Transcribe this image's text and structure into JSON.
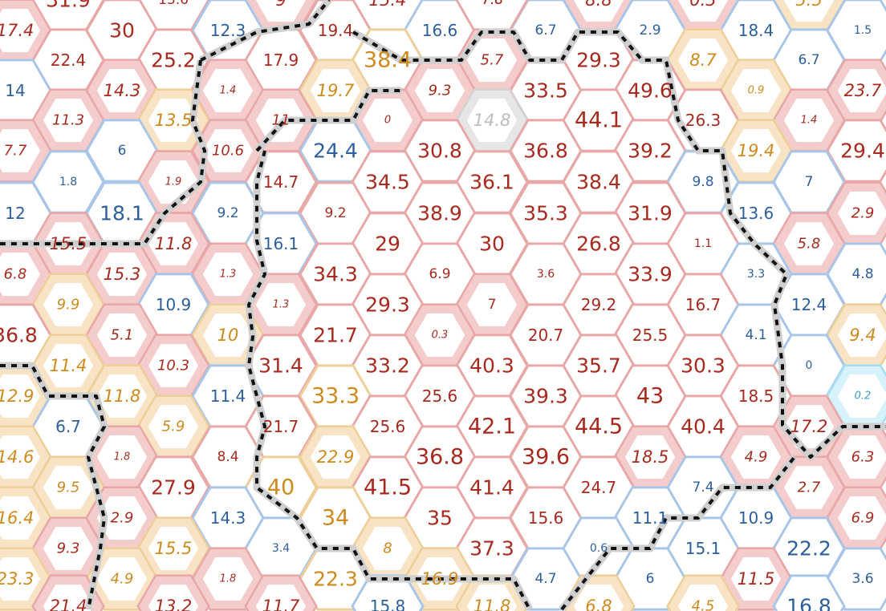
{
  "palette": {
    "red": {
      "edge": "#e8a8a8",
      "ring": "#f4cccc",
      "text": "#a82a1f"
    },
    "orange": {
      "edge": "#eecf9a",
      "ring": "#f8e4c4",
      "text": "#cf8a1e"
    },
    "blue": {
      "edge": "#a9c6e8",
      "ring": "#ffffff",
      "text": "#2c5f9c"
    },
    "gray": {
      "edge": "#d2d2d2",
      "ring": "#e6e6e6",
      "text": "#bdbdbd"
    },
    "cyan": {
      "edge": "#a7dff0",
      "ring": "#d7f2fa",
      "text": "#3b9ec4"
    }
  },
  "cells": [
    {
      "v": "31.9",
      "c": "red",
      "s": "L",
      "r": 0
    },
    {
      "v": "13.6",
      "c": "red",
      "s": "S",
      "r": 0
    },
    {
      "v": "9",
      "c": "red",
      "s": "I",
      "r": 1
    },
    {
      "v": "15.4",
      "c": "red",
      "s": "I",
      "r": 0
    },
    {
      "v": "7.8",
      "c": "red",
      "s": "S",
      "r": 0
    },
    {
      "v": "8.8",
      "c": "red",
      "s": "I",
      "r": 1
    },
    {
      "v": "0.3",
      "c": "red",
      "s": "I",
      "r": 1
    },
    {
      "v": "5.5",
      "c": "orange",
      "s": "I",
      "r": 1
    },
    {
      "v": "17.4",
      "c": "red",
      "s": "I",
      "r": 1
    },
    {
      "v": "12.3",
      "c": "blue",
      "s": "M",
      "r": 0
    },
    {
      "v": "16.6",
      "c": "blue",
      "s": "M",
      "r": 0
    },
    {
      "v": "6.7",
      "c": "blue",
      "s": "S",
      "r": 0
    },
    {
      "v": "2.9",
      "c": "blue",
      "s": "S",
      "r": 0
    },
    {
      "v": "18.4",
      "c": "blue",
      "s": "M",
      "r": 0
    },
    {
      "v": "1.5",
      "c": "blue",
      "s": "XS",
      "r": 0
    },
    {
      "v": "30",
      "c": "red",
      "s": "L",
      "r": 0
    },
    {
      "v": "19.4",
      "c": "red",
      "s": "M",
      "r": 0
    },
    {
      "v": "7.8",
      "c": "red",
      "s": "S",
      "r": 0
    },
    {
      "v": "22.4",
      "c": "red",
      "s": "M",
      "r": 0
    },
    {
      "v": "17.9",
      "c": "red",
      "s": "M",
      "r": 0
    },
    {
      "v": "38.4",
      "c": "orange",
      "s": "XL",
      "r": 0
    },
    {
      "v": "25.2",
      "c": "red",
      "s": "L",
      "r": 0
    },
    {
      "v": "5.7",
      "c": "red",
      "s": "IS",
      "r": 1
    },
    {
      "v": "29.3",
      "c": "red",
      "s": "L",
      "r": 0
    },
    {
      "v": "8.7",
      "c": "orange",
      "s": "I",
      "r": 1
    },
    {
      "v": "6.7",
      "c": "blue",
      "s": "S",
      "r": 0
    },
    {
      "v": "14.3",
      "c": "red",
      "s": "I",
      "r": 1
    },
    {
      "v": "1.4",
      "c": "red",
      "s": "IX",
      "r": 1
    },
    {
      "v": "19.7",
      "c": "orange",
      "s": "I",
      "r": 1
    },
    {
      "v": "9.3",
      "c": "red",
      "s": "IS",
      "r": 1
    },
    {
      "v": "33.5",
      "c": "red",
      "s": "L",
      "r": 0
    },
    {
      "v": "49.6",
      "c": "red",
      "s": "L",
      "r": 0
    },
    {
      "v": "0.9",
      "c": "orange",
      "s": "IX",
      "r": 1
    },
    {
      "v": "23.7",
      "c": "red",
      "s": "I",
      "r": 1
    },
    {
      "v": "14",
      "c": "blue",
      "s": "M",
      "r": 0
    },
    {
      "v": "11.3",
      "c": "red",
      "s": "IS",
      "r": 1
    },
    {
      "v": "13.5",
      "c": "orange",
      "s": "I",
      "r": 1
    },
    {
      "v": "11",
      "c": "red",
      "s": "IS",
      "r": 1
    },
    {
      "v": "0",
      "c": "red",
      "s": "IX",
      "r": 1
    },
    {
      "v": "14.8",
      "c": "gray",
      "s": "I",
      "r": 1
    },
    {
      "v": "44.1",
      "c": "red",
      "s": "XL",
      "r": 0
    },
    {
      "v": "26.3",
      "c": "red",
      "s": "M",
      "r": 0
    },
    {
      "v": "1.4",
      "c": "red",
      "s": "IX",
      "r": 1
    },
    {
      "v": "7.7",
      "c": "red",
      "s": "IS",
      "r": 1
    },
    {
      "v": "6",
      "c": "blue",
      "s": "S",
      "r": 0
    },
    {
      "v": "10.6",
      "c": "red",
      "s": "IS",
      "r": 1
    },
    {
      "v": "24.4",
      "c": "blue",
      "s": "L",
      "r": 0
    },
    {
      "v": "30.8",
      "c": "red",
      "s": "L",
      "r": 0
    },
    {
      "v": "36.8",
      "c": "red",
      "s": "L",
      "r": 0
    },
    {
      "v": "39.2",
      "c": "red",
      "s": "L",
      "r": 0
    },
    {
      "v": "19.4",
      "c": "orange",
      "s": "I",
      "r": 1
    },
    {
      "v": "29.4",
      "c": "red",
      "s": "L",
      "r": 0
    },
    {
      "v": "1.8",
      "c": "blue",
      "s": "XS",
      "r": 0
    },
    {
      "v": "1.9",
      "c": "red",
      "s": "IX",
      "r": 1
    },
    {
      "v": "14.7",
      "c": "red",
      "s": "M",
      "r": 0
    },
    {
      "v": "34.5",
      "c": "red",
      "s": "L",
      "r": 0
    },
    {
      "v": "36.1",
      "c": "red",
      "s": "L",
      "r": 0
    },
    {
      "v": "38.4",
      "c": "red",
      "s": "L",
      "r": 0
    },
    {
      "v": "9.8",
      "c": "blue",
      "s": "S",
      "r": 0
    },
    {
      "v": "7",
      "c": "blue",
      "s": "S",
      "r": 0
    },
    {
      "v": "12",
      "c": "blue",
      "s": "M",
      "r": 0
    },
    {
      "v": "18.1",
      "c": "blue",
      "s": "L",
      "r": 0
    },
    {
      "v": "9.2",
      "c": "blue",
      "s": "S",
      "r": 0
    },
    {
      "v": "9.2",
      "c": "red",
      "s": "S",
      "r": 0
    },
    {
      "v": "38.9",
      "c": "red",
      "s": "L",
      "r": 0
    },
    {
      "v": "35.3",
      "c": "red",
      "s": "L",
      "r": 0
    },
    {
      "v": "31.9",
      "c": "red",
      "s": "L",
      "r": 0
    },
    {
      "v": "13.6",
      "c": "blue",
      "s": "M",
      "r": 0
    },
    {
      "v": "2.9",
      "c": "red",
      "s": "IS",
      "r": 1
    },
    {
      "v": "15.5",
      "c": "red",
      "s": "I",
      "r": 1
    },
    {
      "v": "11.8",
      "c": "red",
      "s": "I",
      "r": 1
    },
    {
      "v": "16.1",
      "c": "blue",
      "s": "M",
      "r": 0
    },
    {
      "v": "29",
      "c": "red",
      "s": "L",
      "r": 0
    },
    {
      "v": "30",
      "c": "red",
      "s": "L",
      "r": 0
    },
    {
      "v": "26.8",
      "c": "red",
      "s": "L",
      "r": 0
    },
    {
      "v": "1.1",
      "c": "red",
      "s": "XS",
      "r": 0
    },
    {
      "v": "5.8",
      "c": "red",
      "s": "IS",
      "r": 1
    },
    {
      "v": "6.8",
      "c": "red",
      "s": "IS",
      "r": 1
    },
    {
      "v": "15.3",
      "c": "red",
      "s": "I",
      "r": 1
    },
    {
      "v": "1.3",
      "c": "red",
      "s": "IX",
      "r": 1
    },
    {
      "v": "34.3",
      "c": "red",
      "s": "L",
      "r": 0
    },
    {
      "v": "6.9",
      "c": "red",
      "s": "S",
      "r": 0
    },
    {
      "v": "3.6",
      "c": "red",
      "s": "XS",
      "r": 0
    },
    {
      "v": "33.9",
      "c": "red",
      "s": "L",
      "r": 0
    },
    {
      "v": "3.3",
      "c": "blue",
      "s": "XS",
      "r": 0
    },
    {
      "v": "4.8",
      "c": "blue",
      "s": "S",
      "r": 0
    },
    {
      "v": "9.9",
      "c": "orange",
      "s": "IS",
      "r": 1
    },
    {
      "v": "10.9",
      "c": "blue",
      "s": "M",
      "r": 0
    },
    {
      "v": "1.3",
      "c": "red",
      "s": "IX",
      "r": 1
    },
    {
      "v": "29.3",
      "c": "red",
      "s": "L",
      "r": 0
    },
    {
      "v": "7",
      "c": "red",
      "s": "S",
      "r": 1
    },
    {
      "v": "29.2",
      "c": "red",
      "s": "M",
      "r": 0
    },
    {
      "v": "16.7",
      "c": "red",
      "s": "M",
      "r": 0
    },
    {
      "v": "12.4",
      "c": "blue",
      "s": "M",
      "r": 0
    },
    {
      "v": "36.8",
      "c": "red",
      "s": "L",
      "r": 0
    },
    {
      "v": "5.1",
      "c": "red",
      "s": "IS",
      "r": 1
    },
    {
      "v": "10",
      "c": "orange",
      "s": "I",
      "r": 1
    },
    {
      "v": "21.7",
      "c": "red",
      "s": "L",
      "r": 0
    },
    {
      "v": "0.3",
      "c": "red",
      "s": "IX",
      "r": 1
    },
    {
      "v": "20.7",
      "c": "red",
      "s": "M",
      "r": 0
    },
    {
      "v": "25.5",
      "c": "red",
      "s": "M",
      "r": 0
    },
    {
      "v": "4.1",
      "c": "blue",
      "s": "S",
      "r": 0
    },
    {
      "v": "9.4",
      "c": "orange",
      "s": "I",
      "r": 1
    },
    {
      "v": "11.4",
      "c": "orange",
      "s": "I",
      "r": 1
    },
    {
      "v": "10.3",
      "c": "red",
      "s": "IS",
      "r": 1
    },
    {
      "v": "31.4",
      "c": "red",
      "s": "L",
      "r": 0
    },
    {
      "v": "33.2",
      "c": "red",
      "s": "L",
      "r": 0
    },
    {
      "v": "40.3",
      "c": "red",
      "s": "L",
      "r": 0
    },
    {
      "v": "35.7",
      "c": "red",
      "s": "L",
      "r": 0
    },
    {
      "v": "30.3",
      "c": "red",
      "s": "L",
      "r": 0
    },
    {
      "v": "0",
      "c": "blue",
      "s": "XS",
      "r": 0
    },
    {
      "v": "12.9",
      "c": "orange",
      "s": "I",
      "r": 1
    },
    {
      "v": "11.8",
      "c": "orange",
      "s": "I",
      "r": 1
    },
    {
      "v": "11.4",
      "c": "blue",
      "s": "M",
      "r": 0
    },
    {
      "v": "33.3",
      "c": "orange",
      "s": "XL",
      "r": 0
    },
    {
      "v": "25.6",
      "c": "red",
      "s": "M",
      "r": 0
    },
    {
      "v": "39.3",
      "c": "red",
      "s": "L",
      "r": 0
    },
    {
      "v": "43",
      "c": "red",
      "s": "XL",
      "r": 0
    },
    {
      "v": "18.5",
      "c": "red",
      "s": "M",
      "r": 0
    },
    {
      "v": "0.2",
      "c": "cyan",
      "s": "IX",
      "r": 1
    },
    {
      "v": "6.7",
      "c": "blue",
      "s": "M",
      "r": 0
    },
    {
      "v": "5.9",
      "c": "orange",
      "s": "IS",
      "r": 1
    },
    {
      "v": "21.7",
      "c": "red",
      "s": "M",
      "r": 0
    },
    {
      "v": "25.6",
      "c": "red",
      "s": "M",
      "r": 0
    },
    {
      "v": "42.1",
      "c": "red",
      "s": "XL",
      "r": 0
    },
    {
      "v": "44.5",
      "c": "red",
      "s": "XL",
      "r": 0
    },
    {
      "v": "40.4",
      "c": "red",
      "s": "L",
      "r": 0
    },
    {
      "v": "17.2",
      "c": "red",
      "s": "I",
      "r": 1
    },
    {
      "v": "14.6",
      "c": "orange",
      "s": "I",
      "r": 1
    },
    {
      "v": "1.8",
      "c": "red",
      "s": "IX",
      "r": 1
    },
    {
      "v": "8.4",
      "c": "red",
      "s": "S",
      "r": 0
    },
    {
      "v": "22.9",
      "c": "orange",
      "s": "I",
      "r": 1
    },
    {
      "v": "36.8",
      "c": "red",
      "s": "XL",
      "r": 0
    },
    {
      "v": "39.6",
      "c": "red",
      "s": "XL",
      "r": 0
    },
    {
      "v": "18.5",
      "c": "red",
      "s": "I",
      "r": 1
    },
    {
      "v": "4.9",
      "c": "red",
      "s": "IS",
      "r": 1
    },
    {
      "v": "6.3",
      "c": "red",
      "s": "IS",
      "r": 1
    },
    {
      "v": "9.5",
      "c": "orange",
      "s": "IS",
      "r": 1
    },
    {
      "v": "27.9",
      "c": "red",
      "s": "L",
      "r": 0
    },
    {
      "v": "40",
      "c": "orange",
      "s": "XL",
      "r": 0
    },
    {
      "v": "41.5",
      "c": "red",
      "s": "XL",
      "r": 0
    },
    {
      "v": "41.4",
      "c": "red",
      "s": "L",
      "r": 0
    },
    {
      "v": "24.7",
      "c": "red",
      "s": "M",
      "r": 0
    },
    {
      "v": "7.4",
      "c": "blue",
      "s": "S",
      "r": 0
    },
    {
      "v": "2.7",
      "c": "red",
      "s": "IS",
      "r": 1
    },
    {
      "v": "16.4",
      "c": "orange",
      "s": "I",
      "r": 1
    },
    {
      "v": "2.9",
      "c": "red",
      "s": "IS",
      "r": 1
    },
    {
      "v": "14.3",
      "c": "blue",
      "s": "M",
      "r": 0
    },
    {
      "v": "34",
      "c": "orange",
      "s": "XL",
      "r": 0
    },
    {
      "v": "35",
      "c": "red",
      "s": "L",
      "r": 0
    },
    {
      "v": "15.6",
      "c": "red",
      "s": "M",
      "r": 0
    },
    {
      "v": "11.1",
      "c": "blue",
      "s": "M",
      "r": 0
    },
    {
      "v": "10.9",
      "c": "blue",
      "s": "M",
      "r": 0
    },
    {
      "v": "6.9",
      "c": "red",
      "s": "IS",
      "r": 1
    },
    {
      "v": "9.3",
      "c": "red",
      "s": "IS",
      "r": 1
    },
    {
      "v": "15.5",
      "c": "orange",
      "s": "I",
      "r": 1
    },
    {
      "v": "3.4",
      "c": "blue",
      "s": "XS",
      "r": 0
    },
    {
      "v": "8",
      "c": "orange",
      "s": "IS",
      "r": 1
    },
    {
      "v": "37.3",
      "c": "red",
      "s": "L",
      "r": 0
    },
    {
      "v": "0.6",
      "c": "blue",
      "s": "XS",
      "r": 0
    },
    {
      "v": "15.1",
      "c": "blue",
      "s": "M",
      "r": 0
    },
    {
      "v": "22.2",
      "c": "blue",
      "s": "L",
      "r": 0
    },
    {
      "v": "23.3",
      "c": "orange",
      "s": "I",
      "r": 1
    },
    {
      "v": "4.9",
      "c": "orange",
      "s": "IS",
      "r": 1
    },
    {
      "v": "1.8",
      "c": "red",
      "s": "IX",
      "r": 1
    },
    {
      "v": "22.3",
      "c": "orange",
      "s": "L",
      "r": 0
    },
    {
      "v": "16.9",
      "c": "orange",
      "s": "I",
      "r": 1
    },
    {
      "v": "4.7",
      "c": "blue",
      "s": "S",
      "r": 0
    },
    {
      "v": "6",
      "c": "blue",
      "s": "S",
      "r": 0
    },
    {
      "v": "11.5",
      "c": "red",
      "s": "I",
      "r": 1
    },
    {
      "v": "3.6",
      "c": "blue",
      "s": "S",
      "r": 0
    },
    {
      "v": "21.4",
      "c": "red",
      "s": "I",
      "r": 1
    },
    {
      "v": "13.2",
      "c": "red",
      "s": "I",
      "r": 1
    },
    {
      "v": "11.7",
      "c": "red",
      "s": "I",
      "r": 1
    },
    {
      "v": "15.8",
      "c": "blue",
      "s": "M",
      "r": 0
    },
    {
      "v": "11.8",
      "c": "orange",
      "s": "I",
      "r": 1
    },
    {
      "v": "6.8",
      "c": "orange",
      "s": "I",
      "r": 1
    },
    {
      "v": "4.5",
      "c": "orange",
      "s": "IS",
      "r": 1
    },
    {
      "v": "16.8",
      "c": "blue",
      "s": "L",
      "r": 0
    }
  ]
}
